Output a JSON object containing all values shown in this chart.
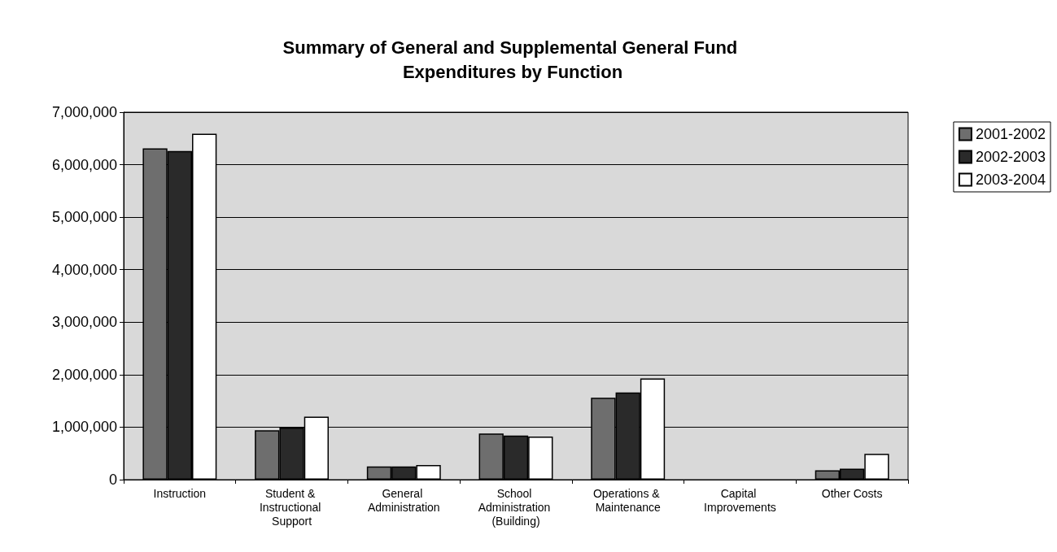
{
  "chart_data": {
    "type": "bar",
    "title": "Summary of General and Supplemental General Fund Expenditures by Function",
    "categories": [
      "Instruction",
      "Student & Instructional Support",
      "General Administration",
      "School Administration (Building)",
      "Operations & Maintenance",
      "Capital Improvements",
      "Other Costs"
    ],
    "series": [
      {
        "name": "2001-2002",
        "color": "#6e6e6e",
        "values": [
          6310000,
          940000,
          250000,
          880000,
          1560000,
          0,
          180000
        ]
      },
      {
        "name": "2002-2003",
        "color": "#2a2a2a",
        "values": [
          6260000,
          990000,
          250000,
          840000,
          1660000,
          0,
          210000
        ]
      },
      {
        "name": "2003-2004",
        "color": "#ffffff",
        "values": [
          6590000,
          1200000,
          280000,
          820000,
          1930000,
          0,
          490000
        ]
      }
    ],
    "ylim": [
      0,
      7000000
    ],
    "yticks": [
      {
        "value": 0,
        "label": "0"
      },
      {
        "value": 1000000,
        "label": "1,000,000"
      },
      {
        "value": 2000000,
        "label": "2,000,000"
      },
      {
        "value": 3000000,
        "label": "3,000,000"
      },
      {
        "value": 4000000,
        "label": "4,000,000"
      },
      {
        "value": 5000000,
        "label": "5,000,000"
      },
      {
        "value": 6000000,
        "label": "6,000,000"
      },
      {
        "value": 7000000,
        "label": "7,000,000"
      }
    ],
    "grid": "y",
    "legend": "right"
  }
}
